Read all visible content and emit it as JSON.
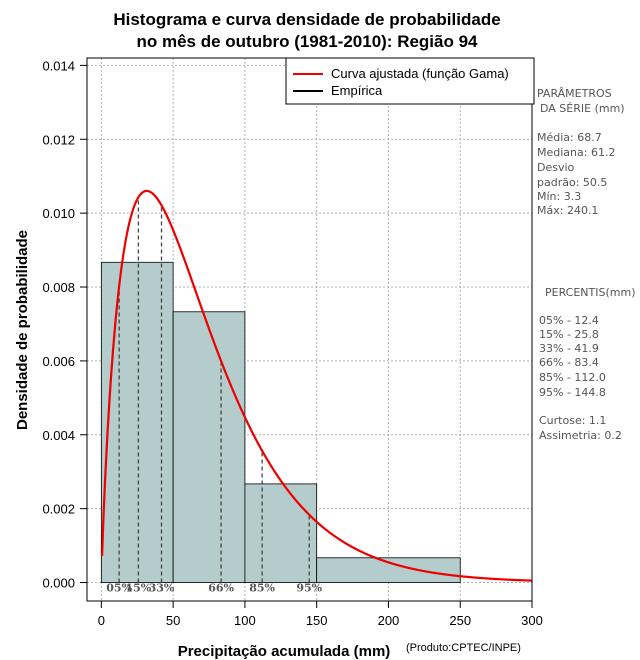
{
  "chart_data": {
    "type": "bar",
    "title_line1": "Histograma e curva densidade de probabilidade",
    "title_line2": "no mês de outubro (1981-2010): Região 94",
    "xlabel": "Precipitação acumulada (mm)",
    "ylabel": "Densidade de probabilidade",
    "credit": "(Produto:CPTEC/INPE)",
    "xlim": [
      -10,
      300
    ],
    "ylim": [
      -0.0005,
      0.0142
    ],
    "x_ticks": [
      "0",
      "50",
      "100",
      "150",
      "200",
      "250",
      "300"
    ],
    "y_ticks": [
      "0.000",
      "0.002",
      "0.004",
      "0.006",
      "0.008",
      "0.010",
      "0.012",
      "0.014"
    ],
    "grid": true,
    "bins": [
      {
        "start": 0,
        "end": 50,
        "density": 0.00867
      },
      {
        "start": 50,
        "end": 100,
        "density": 0.00733
      },
      {
        "start": 100,
        "end": 150,
        "density": 0.00267
      },
      {
        "start": 150,
        "end": 250,
        "density": 0.00067
      }
    ],
    "gamma_fit": {
      "mean": 68.7,
      "sd": 50.5
    },
    "legend": {
      "position": "top-right",
      "items": [
        {
          "label": "Curva ajustada (função Gama)",
          "color": "#ee0000"
        },
        {
          "label": "Empírica",
          "color": "#000000"
        }
      ]
    },
    "percentile_marks": [
      {
        "label": "05%",
        "value": 12.4
      },
      {
        "label": "15%",
        "value": 25.8
      },
      {
        "label": "33%",
        "value": 41.9
      },
      {
        "label": "66%",
        "value": 83.4
      },
      {
        "label": "85%",
        "value": 112.0
      },
      {
        "label": "95%",
        "value": 144.8
      }
    ],
    "bar_color": "#b4cccb",
    "curve_color": "#ee0000"
  },
  "side_panel": {
    "params_title_1": "PARÂMETROS",
    "params_title_2": "DA SÉRIE (mm)",
    "media": "Média:  68.7",
    "mediana": "Mediana:  61.2",
    "desvio_1": "Desvio",
    "desvio_2": "padrão:  50.5",
    "min": "Mín:  3.3",
    "max": "Máx:  240.1",
    "pct_title": "PERCENTIS(mm)",
    "p05": "05% -  12.4",
    "p15": "15% -  25.8",
    "p33": "33% -  41.9",
    "p66": "66% -  83.4",
    "p85": "85% - 112.0",
    "p95": "95% - 144.8",
    "curtose": "Curtose:  1.1",
    "assimetria": "Assimetria:  0.2"
  }
}
